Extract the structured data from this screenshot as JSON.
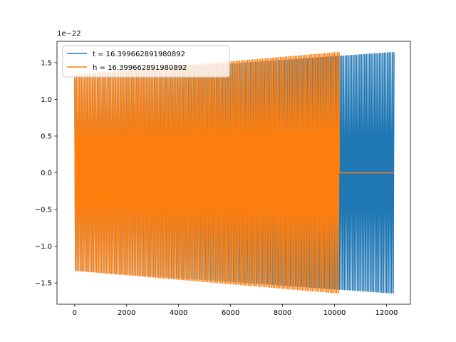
{
  "chart_data": {
    "type": "line",
    "title": "",
    "xlabel": "",
    "ylabel": "",
    "y_offset_label": "1e−22",
    "xlim": [
      -680,
      12920
    ],
    "ylim": [
      -1.79,
      1.79
    ],
    "x_ticks": [
      0,
      2000,
      4000,
      6000,
      8000,
      10000,
      12000
    ],
    "x_tick_labels": [
      "0",
      "2000",
      "4000",
      "6000",
      "8000",
      "10000",
      "12000"
    ],
    "y_ticks": [
      -1.5,
      -1.0,
      -0.5,
      0.0,
      0.5,
      1.0,
      1.5
    ],
    "y_tick_labels": [
      "−1.5",
      "−1.0",
      "−0.5",
      "0.0",
      "0.5",
      "1.0",
      "1.5"
    ],
    "grid": false,
    "legend_position": "upper-left",
    "series": [
      {
        "name": "t = 16.399662891980892",
        "color": "#1f77b4",
        "x_start": 0,
        "x_end": 12290,
        "amplitude_start": 1.33,
        "amplitude_end": 1.64,
        "cycles": 196
      },
      {
        "name": "h = 16.399662891980892",
        "color": "#ff7f0e",
        "x_start": 0,
        "x_end": 10180,
        "amplitude_start": 1.33,
        "amplitude_end": 1.64,
        "cycles": 162,
        "flat_after": {
          "x_start": 10180,
          "x_end": 12290,
          "value": 0.0
        }
      }
    ]
  }
}
